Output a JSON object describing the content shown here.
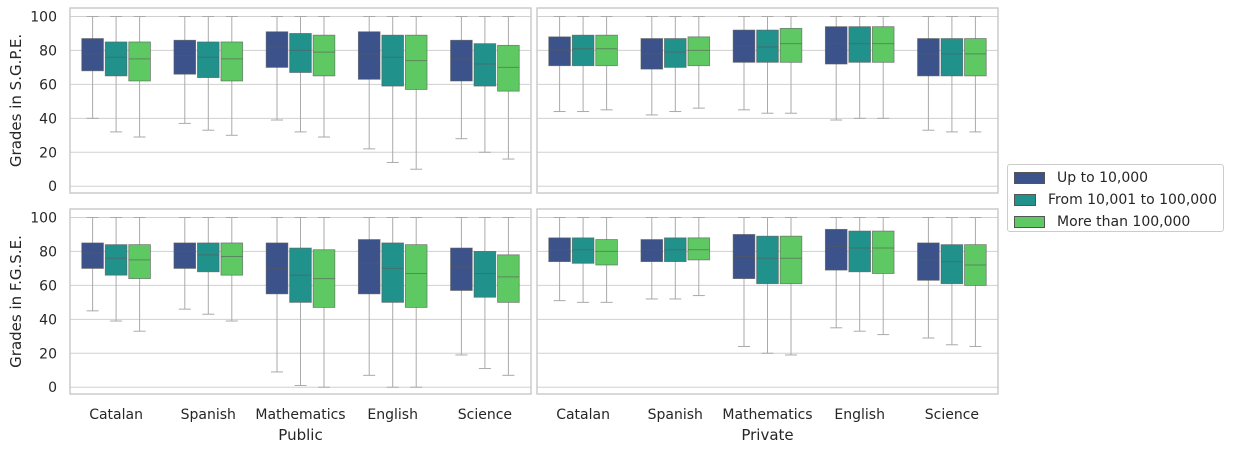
{
  "chart_data": {
    "type": "box",
    "row_labels": [
      "Grades in S.G.P.E.",
      "Grades in F.G.S.E."
    ],
    "column_labels": [
      "Public",
      "Private"
    ],
    "categories": [
      "Catalan",
      "Spanish",
      "Mathematics",
      "English",
      "Science"
    ],
    "ylim": [
      -4,
      105
    ],
    "yticks": [
      0,
      20,
      40,
      60,
      80,
      100
    ],
    "grid": true,
    "legend_placement": "right",
    "series": [
      {
        "name": "Up to 10,000",
        "color": "#3b528b"
      },
      {
        "name": "From 10,001 to 100,000",
        "color": "#21918c"
      },
      {
        "name": "More than 100,000",
        "color": "#5ec962"
      }
    ],
    "panels": [
      {
        "row": 0,
        "col": 0,
        "boxes": [
          [
            [
              40,
              68,
              78,
              87,
              100
            ],
            [
              32,
              65,
              76,
              85,
              100
            ],
            [
              29,
              62,
              75,
              85,
              100
            ]
          ],
          [
            [
              37,
              66,
              77,
              86,
              100
            ],
            [
              33,
              64,
              76,
              85,
              100
            ],
            [
              30,
              62,
              75,
              85,
              100
            ]
          ],
          [
            [
              39,
              70,
              82,
              91,
              100
            ],
            [
              32,
              67,
              80,
              90,
              100
            ],
            [
              29,
              65,
              79,
              89,
              100
            ]
          ],
          [
            [
              22,
              63,
              78,
              91,
              100
            ],
            [
              14,
              59,
              76,
              89,
              100
            ],
            [
              10,
              57,
              74,
              89,
              100
            ]
          ],
          [
            [
              28,
              62,
              75,
              86,
              100
            ],
            [
              20,
              59,
              72,
              84,
              100
            ],
            [
              16,
              56,
              70,
              83,
              100
            ]
          ]
        ]
      },
      {
        "row": 0,
        "col": 1,
        "boxes": [
          [
            [
              44,
              71,
              80,
              88,
              100
            ],
            [
              44,
              71,
              81,
              89,
              100
            ],
            [
              45,
              71,
              81,
              89,
              100
            ]
          ],
          [
            [
              42,
              69,
              78,
              87,
              100
            ],
            [
              44,
              70,
              79,
              87,
              100
            ],
            [
              46,
              71,
              80,
              88,
              100
            ]
          ],
          [
            [
              45,
              73,
              83,
              92,
              100
            ],
            [
              43,
              73,
              82,
              92,
              100
            ],
            [
              43,
              73,
              84,
              93,
              100
            ]
          ],
          [
            [
              39,
              72,
              84,
              94,
              100
            ],
            [
              40,
              73,
              84,
              94,
              100
            ],
            [
              40,
              73,
              84,
              94,
              100
            ]
          ],
          [
            [
              33,
              65,
              78,
              87,
              100
            ],
            [
              32,
              65,
              78,
              87,
              100
            ],
            [
              32,
              65,
              78,
              87,
              100
            ]
          ]
        ]
      },
      {
        "row": 1,
        "col": 0,
        "boxes": [
          [
            [
              45,
              70,
              79,
              85,
              100
            ],
            [
              39,
              66,
              76,
              84,
              100
            ],
            [
              33,
              64,
              75,
              84,
              100
            ]
          ],
          [
            [
              46,
              70,
              80,
              85,
              100
            ],
            [
              43,
              68,
              78,
              85,
              100
            ],
            [
              39,
              66,
              77,
              85,
              100
            ]
          ],
          [
            [
              9,
              55,
              70,
              85,
              100
            ],
            [
              1,
              50,
              66,
              82,
              100
            ],
            [
              0,
              47,
              64,
              81,
              100
            ]
          ],
          [
            [
              7,
              55,
              73,
              87,
              100
            ],
            [
              0,
              50,
              70,
              85,
              100
            ],
            [
              0,
              47,
              67,
              84,
              100
            ]
          ],
          [
            [
              19,
              57,
              71,
              82,
              100
            ],
            [
              11,
              53,
              67,
              80,
              100
            ],
            [
              7,
              50,
              65,
              78,
              100
            ]
          ]
        ]
      },
      {
        "row": 1,
        "col": 1,
        "boxes": [
          [
            [
              51,
              74,
              81,
              88,
              100
            ],
            [
              50,
              73,
              81,
              88,
              100
            ],
            [
              50,
              72,
              80,
              87,
              100
            ]
          ],
          [
            [
              52,
              74,
              81,
              87,
              100
            ],
            [
              52,
              74,
              81,
              88,
              100
            ],
            [
              54,
              75,
              81,
              88,
              100
            ]
          ],
          [
            [
              24,
              64,
              77,
              90,
              100
            ],
            [
              20,
              61,
              76,
              89,
              100
            ],
            [
              19,
              61,
              76,
              89,
              100
            ]
          ],
          [
            [
              35,
              69,
              83,
              93,
              100
            ],
            [
              33,
              68,
              82,
              92,
              100
            ],
            [
              31,
              67,
              82,
              92,
              100
            ]
          ],
          [
            [
              29,
              63,
              75,
              85,
              100
            ],
            [
              25,
              61,
              74,
              84,
              100
            ],
            [
              24,
              60,
              72,
              84,
              100
            ]
          ]
        ]
      }
    ]
  }
}
